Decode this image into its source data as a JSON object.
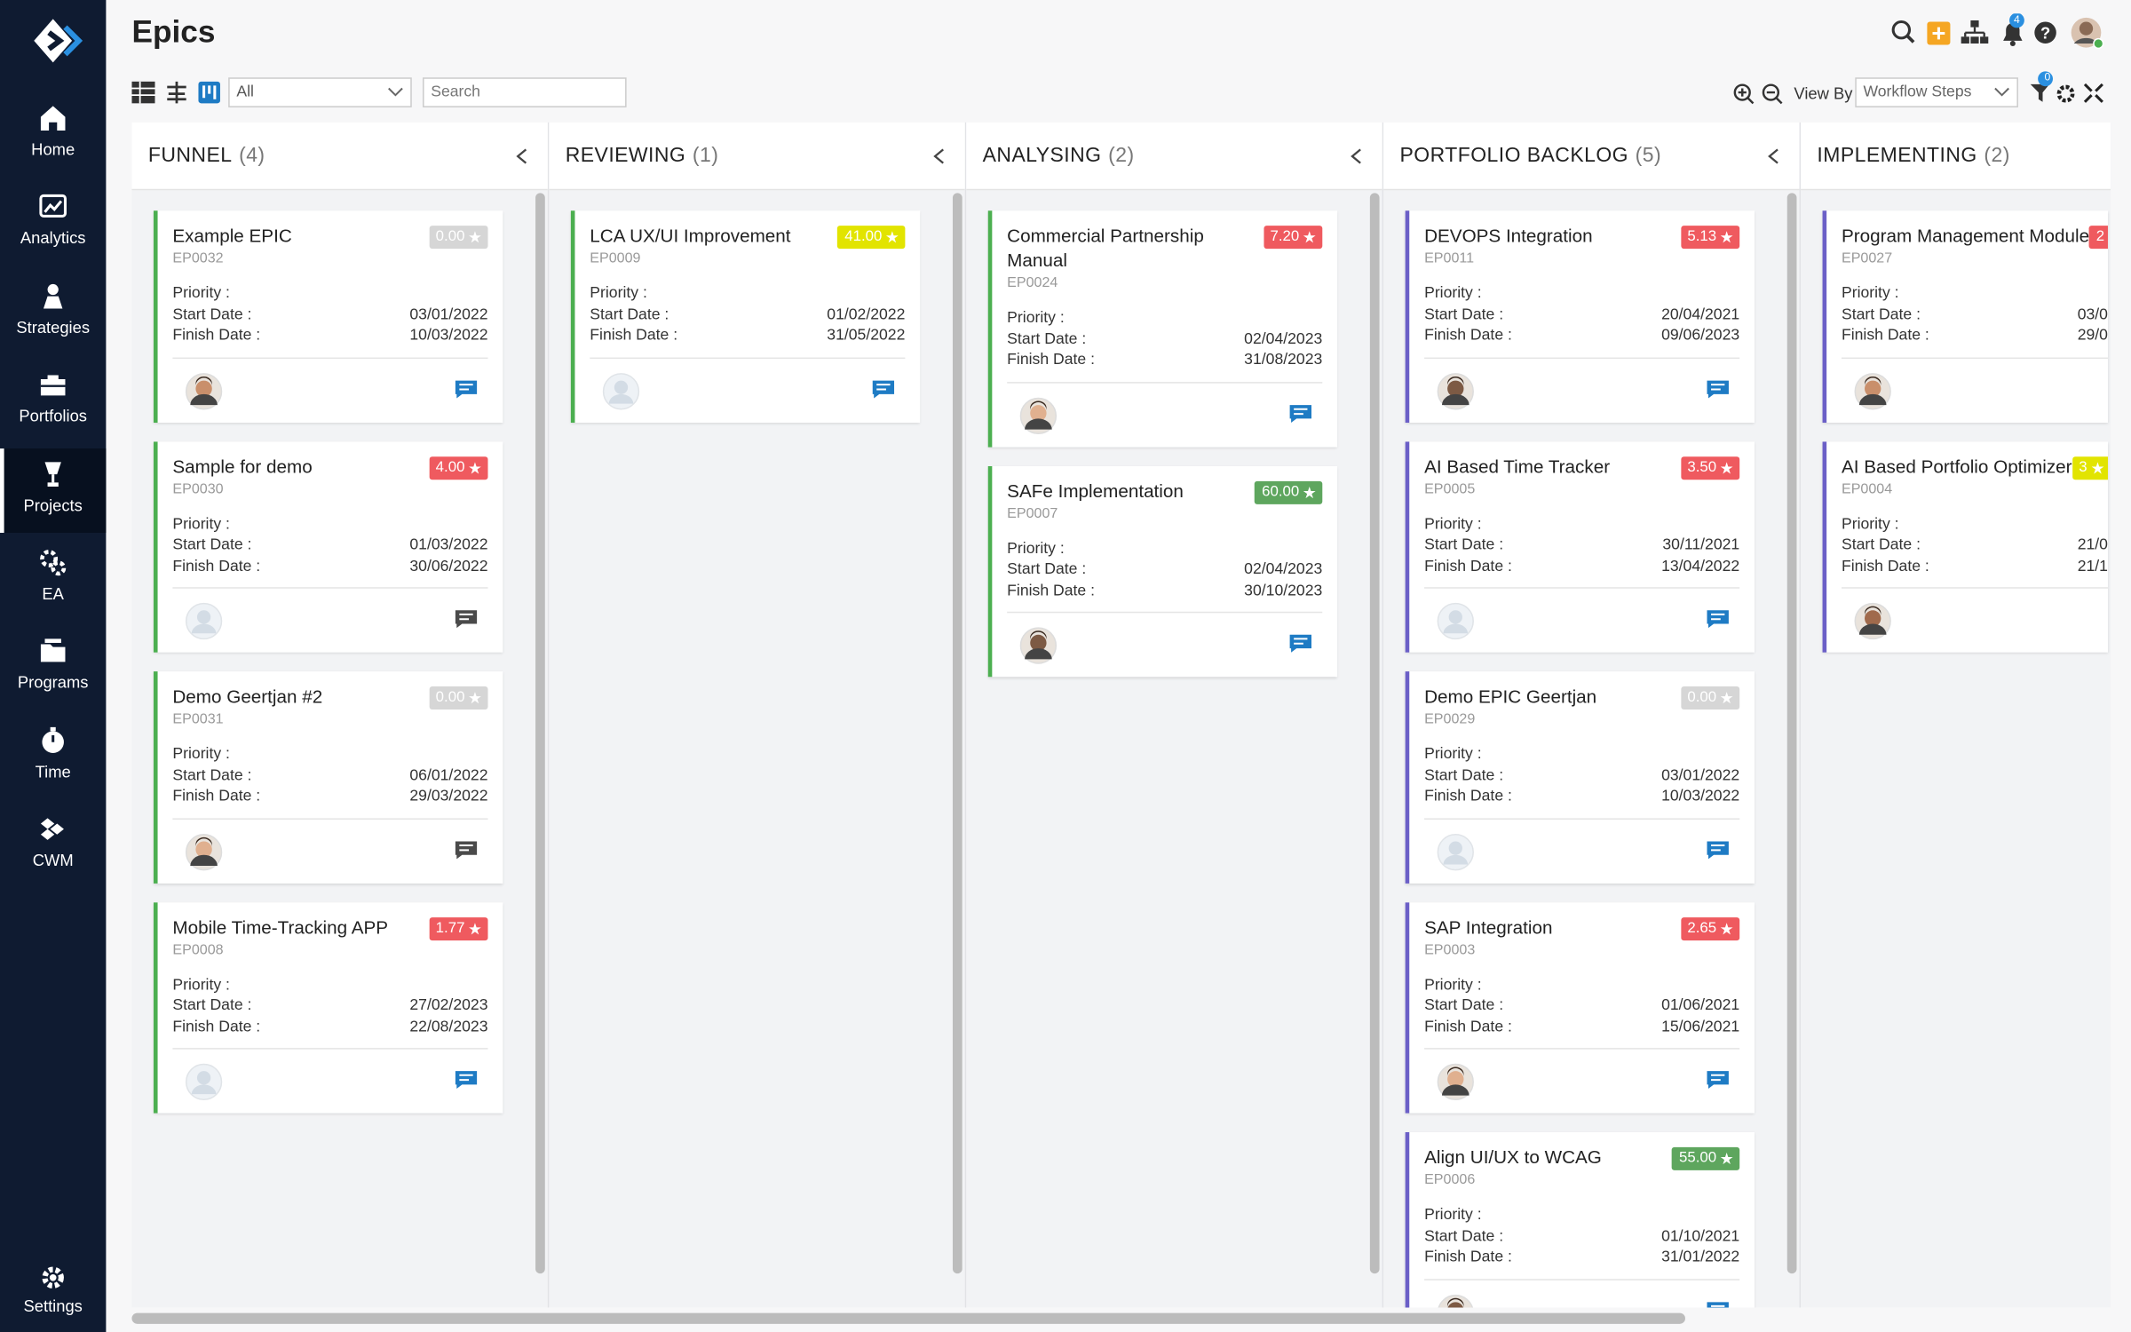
{
  "sidebar": {
    "items": [
      {
        "label": "Home"
      },
      {
        "label": "Analytics"
      },
      {
        "label": "Strategies"
      },
      {
        "label": "Portfolios"
      },
      {
        "label": "Projects",
        "active": true
      },
      {
        "label": "EA"
      },
      {
        "label": "Programs"
      },
      {
        "label": "Time"
      },
      {
        "label": "CWM"
      }
    ],
    "settings": "Settings"
  },
  "header": {
    "title": "Epics",
    "notification_count": "4"
  },
  "toolbar": {
    "filter": "All",
    "search_placeholder": "Search",
    "view_by_label": "View By",
    "view_by_value": "Workflow Steps",
    "filter_count": "0"
  },
  "labels": {
    "priority": "Priority :",
    "start": "Start Date :",
    "finish": "Finish Date :"
  },
  "columns": [
    {
      "title": "FUNNEL",
      "count": "(4)",
      "accent": "#4caf50",
      "cards": [
        {
          "title": "Example EPIC",
          "id": "EP0032",
          "score": "0.00",
          "badge": "#d6d6d6",
          "start": "03/01/2022",
          "finish": "10/03/2022",
          "avatar": "photo",
          "comment": "#1e7bc4"
        },
        {
          "title": "Sample for demo",
          "id": "EP0030",
          "score": "4.00",
          "badge": "#ef5a5f",
          "start": "01/03/2022",
          "finish": "30/06/2022",
          "avatar": "placeholder",
          "comment": "#4a4a4a"
        },
        {
          "title": "Demo Geertjan #2",
          "id": "EP0031",
          "score": "0.00",
          "badge": "#d6d6d6",
          "start": "06/01/2022",
          "finish": "29/03/2022",
          "avatar": "photo",
          "comment": "#4a4a4a"
        },
        {
          "title": "Mobile Time-Tracking APP",
          "id": "EP0008",
          "score": "1.77",
          "badge": "#ef5a5f",
          "start": "27/02/2023",
          "finish": "22/08/2023",
          "avatar": "placeholder",
          "comment": "#1e7bc4"
        }
      ]
    },
    {
      "title": "REVIEWING",
      "count": "(1)",
      "accent": "#4caf50",
      "cards": [
        {
          "title": "LCA UX/UI Improvement",
          "id": "EP0009",
          "score": "41.00",
          "badge": "#e2e400",
          "start": "01/02/2022",
          "finish": "31/05/2022",
          "avatar": "placeholder",
          "comment": "#1e7bc4"
        }
      ]
    },
    {
      "title": "ANALYSING",
      "count": "(2)",
      "accent": "#4caf50",
      "cards": [
        {
          "title": "Commercial Partnership Manual",
          "id": "EP0024",
          "score": "7.20",
          "badge": "#ef5a5f",
          "start": "02/04/2023",
          "finish": "31/08/2023",
          "avatar": "photo",
          "comment": "#1e7bc4"
        },
        {
          "title": "SAFe Implementation",
          "id": "EP0007",
          "score": "60.00",
          "badge": "#5ea65e",
          "start": "02/04/2023",
          "finish": "30/10/2023",
          "avatar": "photo",
          "comment": "#1e7bc4"
        }
      ]
    },
    {
      "title": "PORTFOLIO BACKLOG",
      "count": "(5)",
      "accent": "#6b5fc7",
      "cards": [
        {
          "title": "DEVOPS Integration",
          "id": "EP0011",
          "score": "5.13",
          "badge": "#ef5a5f",
          "start": "20/04/2021",
          "finish": "09/06/2023",
          "avatar": "photo",
          "comment": "#1e7bc4"
        },
        {
          "title": "AI Based Time Tracker",
          "id": "EP0005",
          "score": "3.50",
          "badge": "#ef5a5f",
          "start": "30/11/2021",
          "finish": "13/04/2022",
          "avatar": "placeholder",
          "comment": "#1e7bc4"
        },
        {
          "title": "Demo EPIC Geertjan",
          "id": "EP0029",
          "score": "0.00",
          "badge": "#d6d6d6",
          "start": "03/01/2022",
          "finish": "10/03/2022",
          "avatar": "placeholder",
          "comment": "#1e7bc4"
        },
        {
          "title": "SAP Integration",
          "id": "EP0003",
          "score": "2.65",
          "badge": "#ef5a5f",
          "start": "01/06/2021",
          "finish": "15/06/2021",
          "avatar": "photo",
          "comment": "#1e7bc4"
        },
        {
          "title": "Align UI/UX to WCAG",
          "id": "EP0006",
          "score": "55.00",
          "badge": "#5ea65e",
          "start": "01/10/2021",
          "finish": "31/01/2022",
          "avatar": "photo",
          "comment": "#1e7bc4"
        }
      ]
    },
    {
      "title": "IMPLEMENTING",
      "count": "(2)",
      "accent": "#6b5fc7",
      "cards": [
        {
          "title": "Program Management Module",
          "id": "EP0027",
          "score": "2",
          "badge": "#ef5a5f",
          "start": "03/0",
          "finish": "29/0",
          "avatar": "photo"
        },
        {
          "title": "AI Based Portfolio Optimizer",
          "id": "EP0004",
          "score": "3",
          "badge": "#e2e400",
          "start": "21/0",
          "finish": "21/1",
          "avatar": "photo"
        }
      ]
    }
  ]
}
